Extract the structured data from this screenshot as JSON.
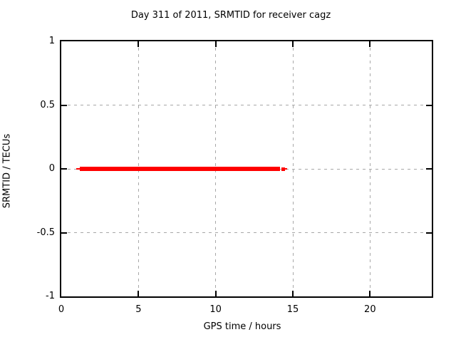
{
  "window": {
    "background": "#ffffff"
  },
  "chart_data": {
    "type": "scatter",
    "title": "Day 311 of 2011, SRMTID for receiver cagz",
    "xlabel": "GPS time / hours",
    "ylabel": "SRMTID / TECUs",
    "xlim": [
      0,
      24
    ],
    "ylim": [
      -1,
      1
    ],
    "xticks": [
      0,
      5,
      10,
      15,
      20
    ],
    "xtick_labels": [
      "0",
      "5",
      "10",
      "15",
      "20"
    ],
    "yticks": [
      -1,
      -0.5,
      0,
      0.5,
      1
    ],
    "ytick_labels": [
      "-1",
      "-0.5",
      "0",
      "0.5",
      "1"
    ],
    "grid": true,
    "legend": "none",
    "series": [
      {
        "name": "SRMTID",
        "color": "#ff0000",
        "y_value": 0,
        "description": "dense horizontal band of points at SRMTID = 0 from ~1.2 h to ~14.15 h, with sparse trailing points near 14.35 h and 14.55 h and a thin leading dash near 1.0 h",
        "marks": [
          {
            "kind": "dash",
            "x_start": 0.98,
            "x_end": 1.2,
            "y": 0
          },
          {
            "kind": "band",
            "x_start": 1.22,
            "x_end": 14.15,
            "y": 0
          },
          {
            "kind": "point",
            "x": 14.36,
            "y": 0
          },
          {
            "kind": "dash",
            "x_start": 14.5,
            "x_end": 14.62,
            "y": 0
          }
        ]
      }
    ]
  },
  "colors": {
    "background": "#ffffff",
    "text": "#000000",
    "border": "#000000",
    "grid": "#a8a8a8",
    "series": "#ff0000"
  }
}
